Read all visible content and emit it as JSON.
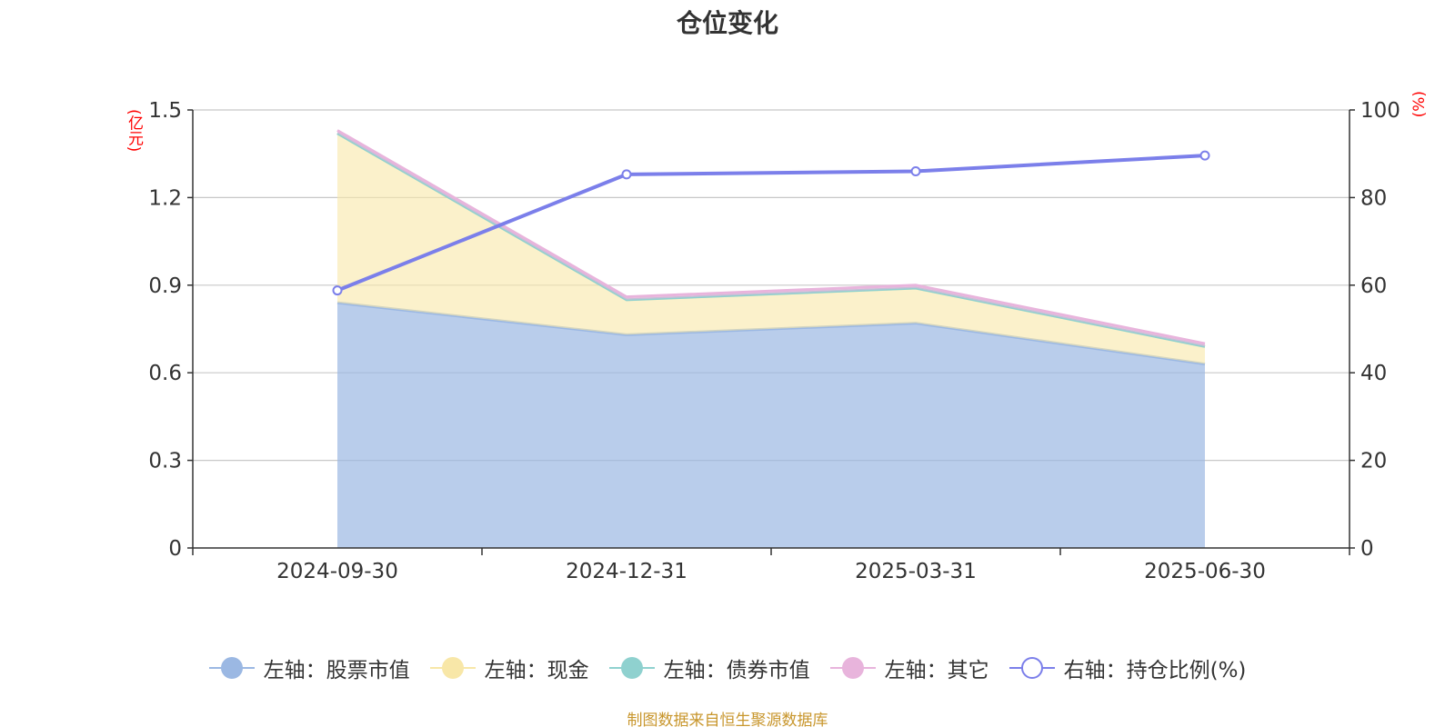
{
  "chart_data": {
    "type": "area",
    "title": "仓位变化",
    "categories": [
      "2024-09-30",
      "2024-12-31",
      "2025-03-31",
      "2025-06-30"
    ],
    "y_left": {
      "unit_label": "(亿元)",
      "ticks": [
        "0",
        "0.3",
        "0.6",
        "0.9",
        "1.2",
        "1.5"
      ],
      "range": [
        0,
        1.5
      ]
    },
    "y_right": {
      "unit_label": "(%)",
      "ticks": [
        "0",
        "20",
        "40",
        "60",
        "80",
        "100"
      ],
      "range": [
        0,
        100
      ]
    },
    "grid": true,
    "legend_position": "bottom",
    "series": [
      {
        "name": "左轴：股票市值",
        "axis": "left",
        "stacked": true,
        "color": "#9bb8e3",
        "values": [
          0.84,
          0.73,
          0.77,
          0.63
        ]
      },
      {
        "name": "左轴：现金",
        "axis": "left",
        "stacked": true,
        "color": "#f8e7a8",
        "values": [
          0.58,
          0.12,
          0.12,
          0.06
        ]
      },
      {
        "name": "左轴：债券市值",
        "axis": "left",
        "stacked": true,
        "color": "#8fd1cf",
        "values": [
          0,
          0,
          0,
          0
        ]
      },
      {
        "name": "左轴：其它",
        "axis": "left",
        "stacked": true,
        "color": "#e8b4dc",
        "values": [
          0.01,
          0.01,
          0.01,
          0.01
        ]
      },
      {
        "name": "右轴：持仓比例(%)",
        "axis": "right",
        "stacked": false,
        "color": "#7b7fea",
        "values": [
          58.8,
          85.3,
          86.0,
          89.6
        ]
      }
    ]
  },
  "source_note": "制图数据来自恒生聚源数据库"
}
